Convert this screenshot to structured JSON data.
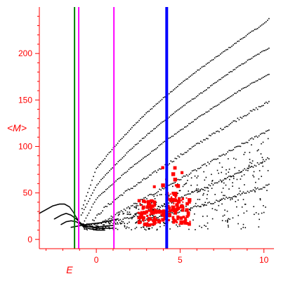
{
  "chart_data": {
    "type": "scatter",
    "xlabel": "E",
    "ylabel": "<M>",
    "xlim": [
      -3.4,
      10.6
    ],
    "ylim": [
      -10,
      250
    ],
    "x_ticks": [
      0,
      5,
      10
    ],
    "y_ticks": [
      0,
      50,
      100,
      150,
      200
    ],
    "grid": false,
    "legend": "none",
    "colors": {
      "axis": "#ff0000",
      "tick_label": "#ff0000",
      "scatter_points": "#000000",
      "highlight_points": "#ff0000",
      "line_green": "#008000",
      "line_magenta": "#ff00ff",
      "line_blue": "#0000ff"
    },
    "vertical_lines": [
      {
        "x": -1.3,
        "color": "#008000"
      },
      {
        "x": -1.05,
        "color": "#ff00ff"
      },
      {
        "x": 1.05,
        "color": "#ff00ff"
      },
      {
        "x": 4.2,
        "color": "#0000ff"
      }
    ],
    "band_ridges": [
      [
        [
          -0.85,
          33
        ],
        [
          0,
          76
        ],
        [
          1,
          98
        ],
        [
          2,
          118
        ],
        [
          3,
          136
        ],
        [
          4,
          152
        ],
        [
          5,
          167
        ],
        [
          6,
          181
        ],
        [
          7,
          194
        ],
        [
          8,
          207
        ],
        [
          9,
          220
        ],
        [
          10,
          232
        ],
        [
          10.3,
          237
        ]
      ],
      [
        [
          -0.9,
          26
        ],
        [
          0,
          58
        ],
        [
          1,
          78
        ],
        [
          2,
          96
        ],
        [
          3,
          112
        ],
        [
          4,
          127
        ],
        [
          5,
          141
        ],
        [
          6,
          154
        ],
        [
          7,
          167
        ],
        [
          8,
          180
        ],
        [
          9,
          192
        ],
        [
          10,
          203
        ],
        [
          10.3,
          206
        ]
      ],
      [
        [
          -0.7,
          20
        ],
        [
          0,
          44
        ],
        [
          1,
          60
        ],
        [
          2,
          76
        ],
        [
          3,
          90
        ],
        [
          4,
          104
        ],
        [
          5,
          117
        ],
        [
          6,
          130
        ],
        [
          7,
          142
        ],
        [
          8,
          154
        ],
        [
          9,
          165
        ],
        [
          10,
          175
        ],
        [
          10.3,
          178
        ]
      ],
      [
        [
          -0.3,
          18
        ],
        [
          0.5,
          34
        ],
        [
          1.5,
          48
        ],
        [
          2.5,
          60
        ],
        [
          3.5,
          72
        ],
        [
          4.5,
          84
        ],
        [
          5.5,
          96
        ],
        [
          6.5,
          108
        ],
        [
          7.5,
          119
        ],
        [
          8.5,
          130
        ],
        [
          9.5,
          140
        ],
        [
          10.3,
          148
        ]
      ],
      [
        [
          0.3,
          18
        ],
        [
          1.5,
          30
        ],
        [
          2.5,
          40
        ],
        [
          3.5,
          50
        ],
        [
          4.5,
          60
        ],
        [
          5.5,
          70
        ],
        [
          6.5,
          80
        ],
        [
          7.5,
          90
        ],
        [
          8.5,
          100
        ],
        [
          9.5,
          110
        ],
        [
          10.3,
          118
        ]
      ],
      [
        [
          1,
          18
        ],
        [
          2.5,
          26
        ],
        [
          3.5,
          33
        ],
        [
          4.5,
          40
        ],
        [
          5.5,
          48
        ],
        [
          6.5,
          56
        ],
        [
          7.5,
          64
        ],
        [
          8.5,
          72
        ],
        [
          9.5,
          80
        ],
        [
          10.3,
          88
        ]
      ],
      [
        [
          2.5,
          20
        ],
        [
          4,
          26
        ],
        [
          5.5,
          33
        ],
        [
          7,
          40
        ],
        [
          8.5,
          48
        ],
        [
          10.3,
          58
        ]
      ]
    ],
    "low_curves": [
      [
        [
          -3.4,
          28
        ],
        [
          -3,
          32
        ],
        [
          -2.6,
          36
        ],
        [
          -2.2,
          38
        ],
        [
          -1.9,
          38
        ],
        [
          -1.6,
          35
        ],
        [
          -1.4,
          30
        ],
        [
          -1.2,
          24
        ],
        [
          -1,
          18
        ],
        [
          -0.8,
          14
        ],
        [
          -0.5,
          12
        ],
        [
          0,
          10
        ],
        [
          0.5,
          10
        ]
      ],
      [
        [
          -2.5,
          22
        ],
        [
          -2.1,
          26
        ],
        [
          -1.8,
          28
        ],
        [
          -1.5,
          26
        ],
        [
          -1.2,
          22
        ],
        [
          -0.9,
          17
        ],
        [
          -0.5,
          14
        ],
        [
          0,
          12
        ],
        [
          0.6,
          12
        ],
        [
          1,
          12
        ]
      ],
      [
        [
          -2.1,
          16
        ],
        [
          -1.8,
          19
        ],
        [
          -1.5,
          20
        ],
        [
          -1.2,
          19
        ],
        [
          -0.9,
          16
        ],
        [
          -0.6,
          14
        ],
        [
          -0.2,
          13
        ],
        [
          0.4,
          14
        ],
        [
          1,
          15
        ]
      ],
      [
        [
          -1.5,
          13
        ],
        [
          -1.2,
          14
        ],
        [
          -0.9,
          15
        ],
        [
          -0.6,
          16
        ],
        [
          -0.2,
          17
        ],
        [
          0.3,
          18
        ],
        [
          0.8,
          20
        ],
        [
          1.3,
          22
        ]
      ]
    ],
    "highlight_clusters": [
      {
        "x": [
          2.5,
          3.6
        ],
        "y": [
          15,
          42
        ],
        "count": 80
      },
      {
        "x": [
          3.7,
          4.2
        ],
        "y": [
          18,
          32
        ],
        "count": 22
      },
      {
        "x": [
          4.2,
          4.9
        ],
        "y": [
          18,
          50
        ],
        "count": 50
      },
      {
        "x": [
          4.8,
          5.6
        ],
        "y": [
          16,
          45
        ],
        "count": 45
      },
      {
        "x": [
          3.3,
          5.2
        ],
        "y": [
          55,
          80
        ],
        "count": 10
      }
    ]
  }
}
